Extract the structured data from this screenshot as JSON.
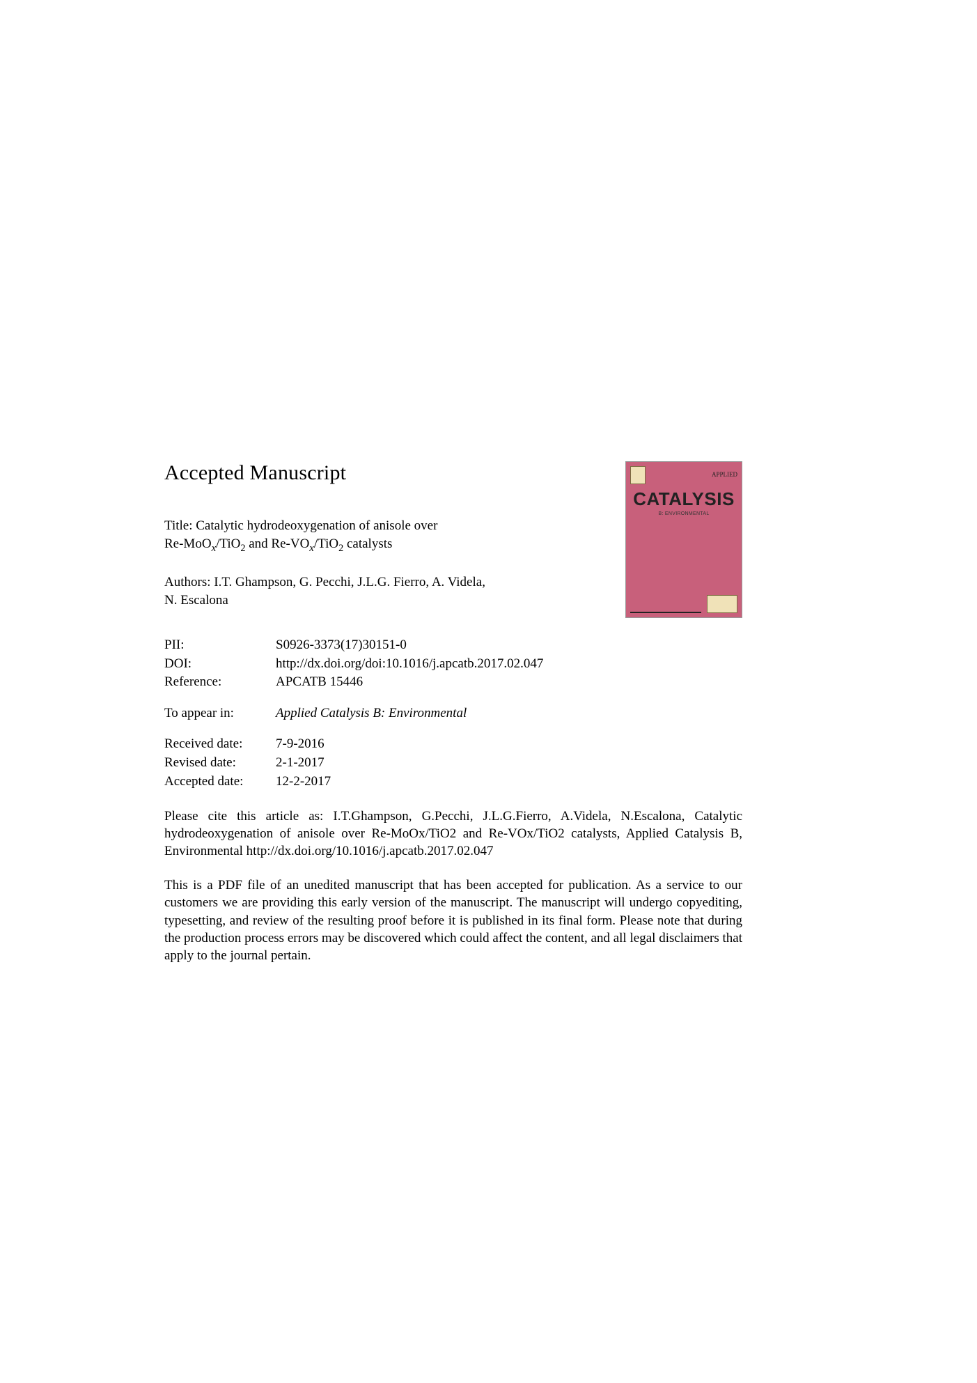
{
  "heading": "Accepted Manuscript",
  "title_prefix": "Title: ",
  "title_line1": "Catalytic hydrodeoxygenation of anisole over",
  "title_line2_a": "Re-MoO",
  "title_line2_b": "/TiO",
  "title_line2_c": " and Re-VO",
  "title_line2_d": "/TiO",
  "title_line2_e": " catalysts",
  "authors_prefix": "Authors: ",
  "authors_line1": "I.T. Ghampson, G. Pecchi, J.L.G. Fierro, A. Videla,",
  "authors_line2": "N. Escalona",
  "cover": {
    "applied": "APPLIED",
    "catalysis": "CATALYSIS",
    "sub": "B: ENVIRONMENTAL"
  },
  "meta": {
    "pii_label": "PII:",
    "pii": "S0926-3373(17)30151-0",
    "doi_label": "DOI:",
    "doi": "http://dx.doi.org/doi:10.1016/j.apcatb.2017.02.047",
    "ref_label": "Reference:",
    "ref": "APCATB 15446",
    "appear_label": "To appear in:",
    "appear": "Applied Catalysis B: Environmental",
    "recv_label": "Received date:",
    "recv": "7-9-2016",
    "rev_label": "Revised date:",
    "rev": "2-1-2017",
    "acc_label": "Accepted date:",
    "acc": "12-2-2017"
  },
  "cite": "Please cite this article as: I.T.Ghampson, G.Pecchi, J.L.G.Fierro, A.Videla, N.Escalona, Catalytic hydrodeoxygenation of anisole over Re-MoOx/TiO2 and Re-VOx/TiO2 catalysts, Applied Catalysis B, Environmental http://dx.doi.org/10.1016/j.apcatb.2017.02.047",
  "disclaimer": "This is a PDF file of an unedited manuscript that has been accepted for publication. As a service to our customers we are providing this early version of the manuscript. The manuscript will undergo copyediting, typesetting, and review of the resulting proof before it is published in its final form. Please note that during the production process errors may be discovered which could affect the content, and all legal disclaimers that apply to the journal pertain."
}
